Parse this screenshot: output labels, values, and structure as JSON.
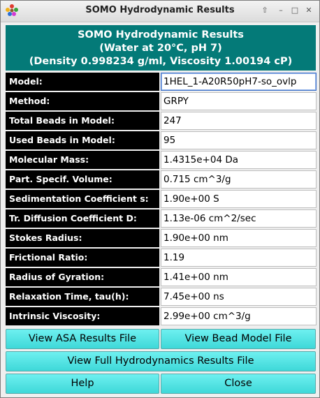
{
  "window": {
    "title": "SOMO Hydrodynamic Results",
    "icons": [
      "app-icon",
      "keep-above-icon",
      "minimize-icon",
      "maximize-icon",
      "close-icon"
    ],
    "controls": {
      "keep_above": "⇧",
      "minimize": "–",
      "maximize": "□",
      "close": "✕"
    }
  },
  "header": {
    "line1": "SOMO Hydrodynamic Results",
    "line2": "(Water at 20°C, pH 7)",
    "line3": "(Density 0.998234 g/ml, Viscosity 1.00194 cP)"
  },
  "fields": [
    {
      "label": "Model:",
      "value": "1HEL_1-A20R50pH7-so_ovlp"
    },
    {
      "label": "Method:",
      "value": "GRPY"
    },
    {
      "label": "Total Beads in Model:",
      "value": "247"
    },
    {
      "label": "Used Beads in Model:",
      "value": "95"
    },
    {
      "label": "Molecular Mass:",
      "value": "1.4315e+04 Da"
    },
    {
      "label": "Part. Specif. Volume:",
      "value": "0.715 cm^3/g"
    },
    {
      "label": "Sedimentation Coefficient s:",
      "value": "1.90e+00 S"
    },
    {
      "label": "Tr. Diffusion Coefficient D:",
      "value": "1.13e-06 cm^2/sec"
    },
    {
      "label": "Stokes Radius:",
      "value": "1.90e+00 nm"
    },
    {
      "label": "Frictional Ratio:",
      "value": "1.19"
    },
    {
      "label": "Radius of Gyration:",
      "value": "1.41e+00 nm"
    },
    {
      "label": "Relaxation Time, tau(h):",
      "value": "7.45e+00 ns"
    },
    {
      "label": "Intrinsic Viscosity:",
      "value": "2.99e+00 cm^3/g"
    }
  ],
  "buttons": {
    "view_asa": "View ASA Results File",
    "view_bead_model": "View Bead Model File",
    "view_full": "View Full Hydrodynamics Results File",
    "help": "Help",
    "close": "Close"
  },
  "colors": {
    "header_bg": "#047a78",
    "label_bg": "#000000",
    "button_bg": "#4ee2e2"
  }
}
